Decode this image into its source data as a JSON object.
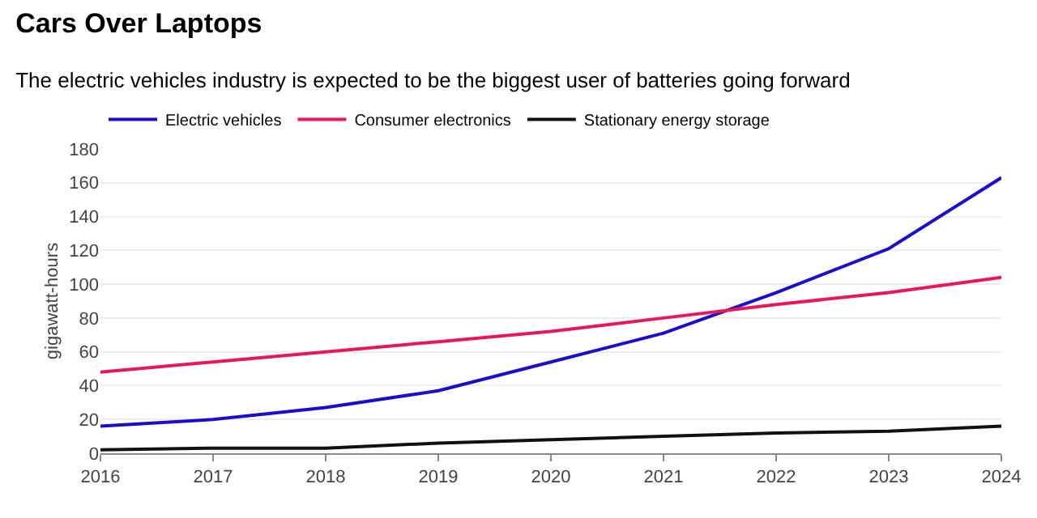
{
  "chart_data": {
    "type": "line",
    "title": "Cars Over Laptops",
    "subtitle": "The electric vehicles industry is expected to be the biggest user of batteries going forward",
    "ylabel": "gigawatt-hours",
    "x": [
      2016,
      2017,
      2018,
      2019,
      2020,
      2021,
      2022,
      2023,
      2024
    ],
    "series": [
      {
        "name": "Electric vehicles",
        "color": "#1a0dcc",
        "values": [
          16,
          20,
          27,
          37,
          54,
          71,
          95,
          121,
          163
        ]
      },
      {
        "name": "Consumer electronics",
        "color": "#e8175d",
        "values": [
          48,
          54,
          60,
          66,
          72,
          80,
          88,
          95,
          104
        ]
      },
      {
        "name": "Stationary energy storage",
        "color": "#111111",
        "values": [
          2,
          3,
          3,
          6,
          8,
          10,
          12,
          13,
          16
        ]
      }
    ],
    "xlim": [
      2016,
      2024
    ],
    "xticks": [
      2016,
      2017,
      2018,
      2019,
      2020,
      2021,
      2022,
      2023,
      2024
    ],
    "ylim": [
      0,
      180
    ],
    "yticks": [
      0,
      20,
      40,
      60,
      80,
      100,
      120,
      140,
      160,
      180
    ],
    "grid": "y",
    "legend": "top left",
    "marker": "none",
    "line_style": "solid"
  }
}
